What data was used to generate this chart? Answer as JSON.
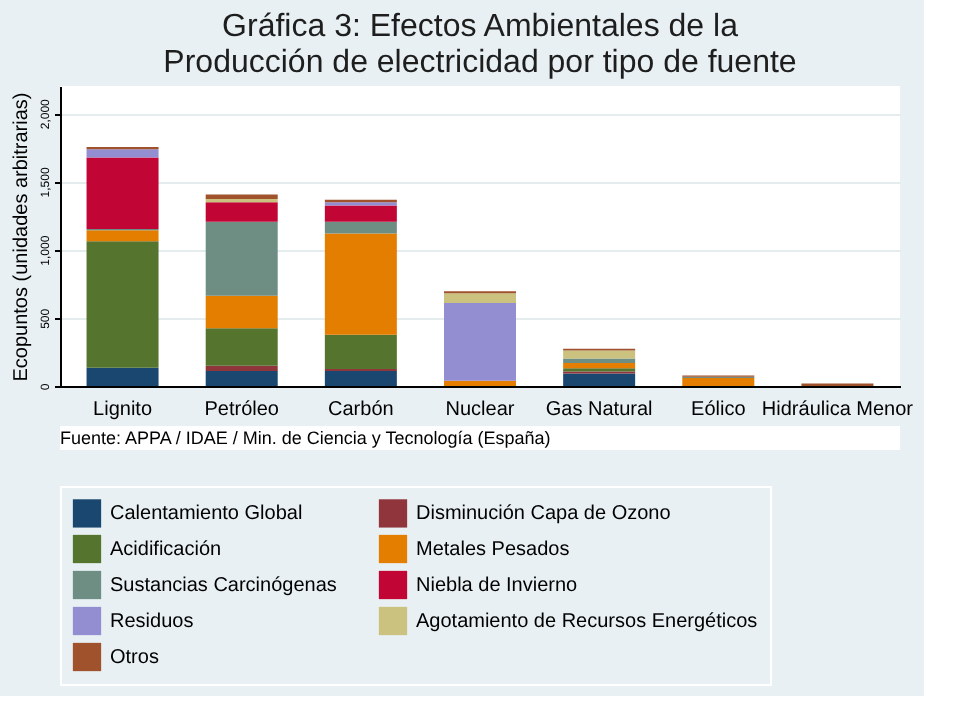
{
  "chart_data": {
    "type": "bar",
    "stacked": true,
    "title": [
      "Gráfica 3: Efectos Ambientales de la",
      "Producción de electricidad por tipo de fuente"
    ],
    "ylabel": "Ecopuntos (unidades arbitrarias)",
    "categories": [
      "Lignito",
      "Petróleo",
      "Carbón",
      "Nuclear",
      "Gas Natural",
      "Eólico",
      "Hidráulica Menor"
    ],
    "series": [
      {
        "name": "Calentamiento Global",
        "color": "#1a476f",
        "values": [
          133,
          110,
          110,
          0,
          91,
          0,
          0
        ]
      },
      {
        "name": "Disminución Capa de Ozono",
        "color": "#90353b",
        "values": [
          0,
          38,
          14,
          0,
          15,
          0,
          0
        ]
      },
      {
        "name": "Acidificación",
        "color": "#55752f",
        "values": [
          928,
          276,
          252,
          0,
          24,
          0,
          0
        ]
      },
      {
        "name": "Metales Pesados",
        "color": "#e37e00",
        "values": [
          81,
          238,
          743,
          38,
          38,
          58,
          0
        ]
      },
      {
        "name": "Sustancias Carcinógenas",
        "color": "#6e8e84",
        "values": [
          10,
          542,
          85,
          0,
          34,
          9,
          0
        ]
      },
      {
        "name": "Niebla de Invierno",
        "color": "#c10534",
        "values": [
          523,
          143,
          119,
          0,
          0,
          0,
          0
        ]
      },
      {
        "name": "Residuos",
        "color": "#938dd2",
        "values": [
          62,
          0,
          24,
          571,
          0,
          0,
          0
        ]
      },
      {
        "name": "Agotamiento de Recursos Energéticos",
        "color": "#cac27e",
        "values": [
          0,
          24,
          0,
          72,
          58,
          0,
          0
        ]
      },
      {
        "name": "Otros",
        "color": "#a0522d",
        "values": [
          15,
          33,
          19,
          14,
          14,
          10,
          19
        ]
      }
    ],
    "ylim": [
      0,
      2200
    ],
    "yticks": [
      0,
      500,
      {
        "value": 1000,
        "label": "1,000"
      },
      {
        "value": 1500,
        "label": "1,500"
      },
      {
        "value": 2000,
        "label": "2,000"
      }
    ],
    "grid": "y",
    "legend": "bottom",
    "annotations": [
      "Fuente: APPA  / IDAE / Min. de Ciencia y Tecnología (España)"
    ]
  }
}
